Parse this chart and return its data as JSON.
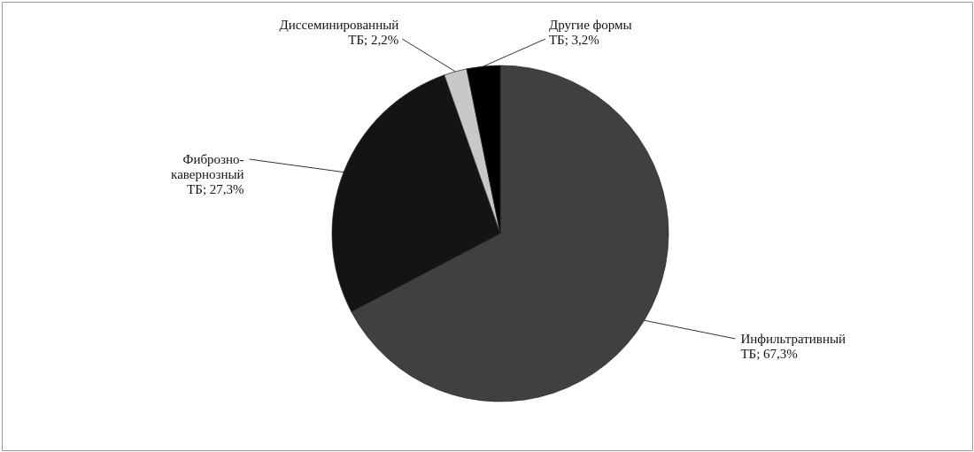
{
  "chart_data": {
    "type": "pie",
    "categories": [
      "Инфильтративный ТБ",
      "Фиброзно-кавернозный ТБ",
      "Диссеминированный ТБ",
      "Другие формы ТБ"
    ],
    "values": [
      67.3,
      27.3,
      2.2,
      3.2
    ],
    "value_labels": [
      "67,3%",
      "27,3%",
      "2,2%",
      "3,2%"
    ],
    "colors": [
      "#404040",
      "#141414",
      "#c8c8c8",
      "#000000"
    ]
  }
}
